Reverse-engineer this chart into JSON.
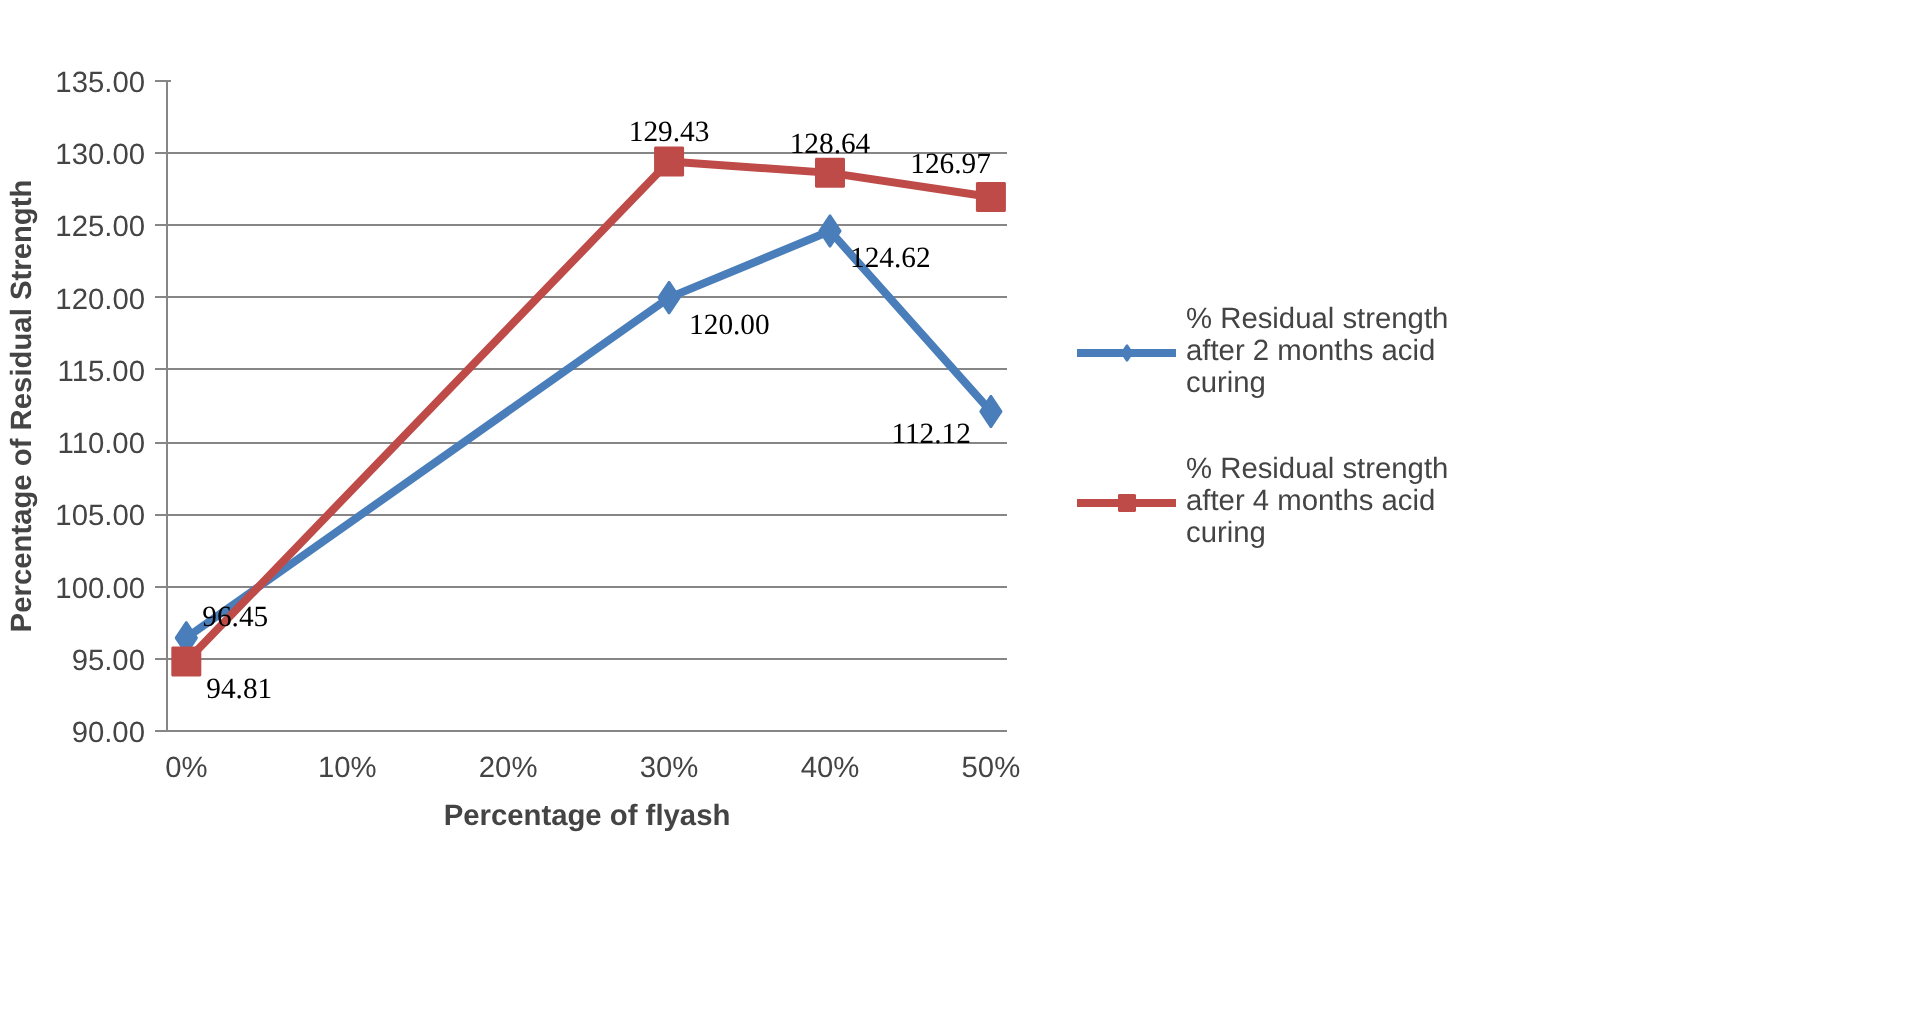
{
  "chart_data": {
    "type": "line",
    "xlabel": "Percentage of flyash",
    "ylabel": "Percentage of Residual Strength",
    "x": [
      0,
      30,
      40,
      50
    ],
    "xlim": [
      -1.2,
      51
    ],
    "xticks": [
      {
        "value": 0,
        "label": "0%"
      },
      {
        "value": 10,
        "label": "10%"
      },
      {
        "value": 20,
        "label": "20%"
      },
      {
        "value": 30,
        "label": "30%"
      },
      {
        "value": 40,
        "label": "40%"
      },
      {
        "value": 50,
        "label": "50%"
      }
    ],
    "ylim": [
      90,
      135
    ],
    "yticks": [
      {
        "value": 90,
        "label": "90.00"
      },
      {
        "value": 95,
        "label": "95.00"
      },
      {
        "value": 100,
        "label": "100.00"
      },
      {
        "value": 105,
        "label": "105.00"
      },
      {
        "value": 110,
        "label": "110.00"
      },
      {
        "value": 115,
        "label": "115.00"
      },
      {
        "value": 120,
        "label": "120.00"
      },
      {
        "value": 125,
        "label": "125.00"
      },
      {
        "value": 130,
        "label": "130.00"
      },
      {
        "value": 135,
        "label": "135.00"
      }
    ],
    "series": [
      {
        "name": "% Residual strength after 2 months acid curing",
        "color": "#4a7ebb",
        "marker": "diamond",
        "values": [
          96.45,
          120.0,
          124.62,
          112.12
        ],
        "value_labels": [
          "96.45",
          "120.00",
          "124.62",
          "112.12"
        ]
      },
      {
        "name": "% Residual strength after 4 months acid curing",
        "color": "#be4b48",
        "marker": "square",
        "values": [
          94.81,
          129.43,
          128.64,
          126.97
        ],
        "value_labels": [
          "94.81",
          "129.43",
          "128.64",
          "126.97"
        ]
      }
    ],
    "grid": "y",
    "legend": "right"
  }
}
